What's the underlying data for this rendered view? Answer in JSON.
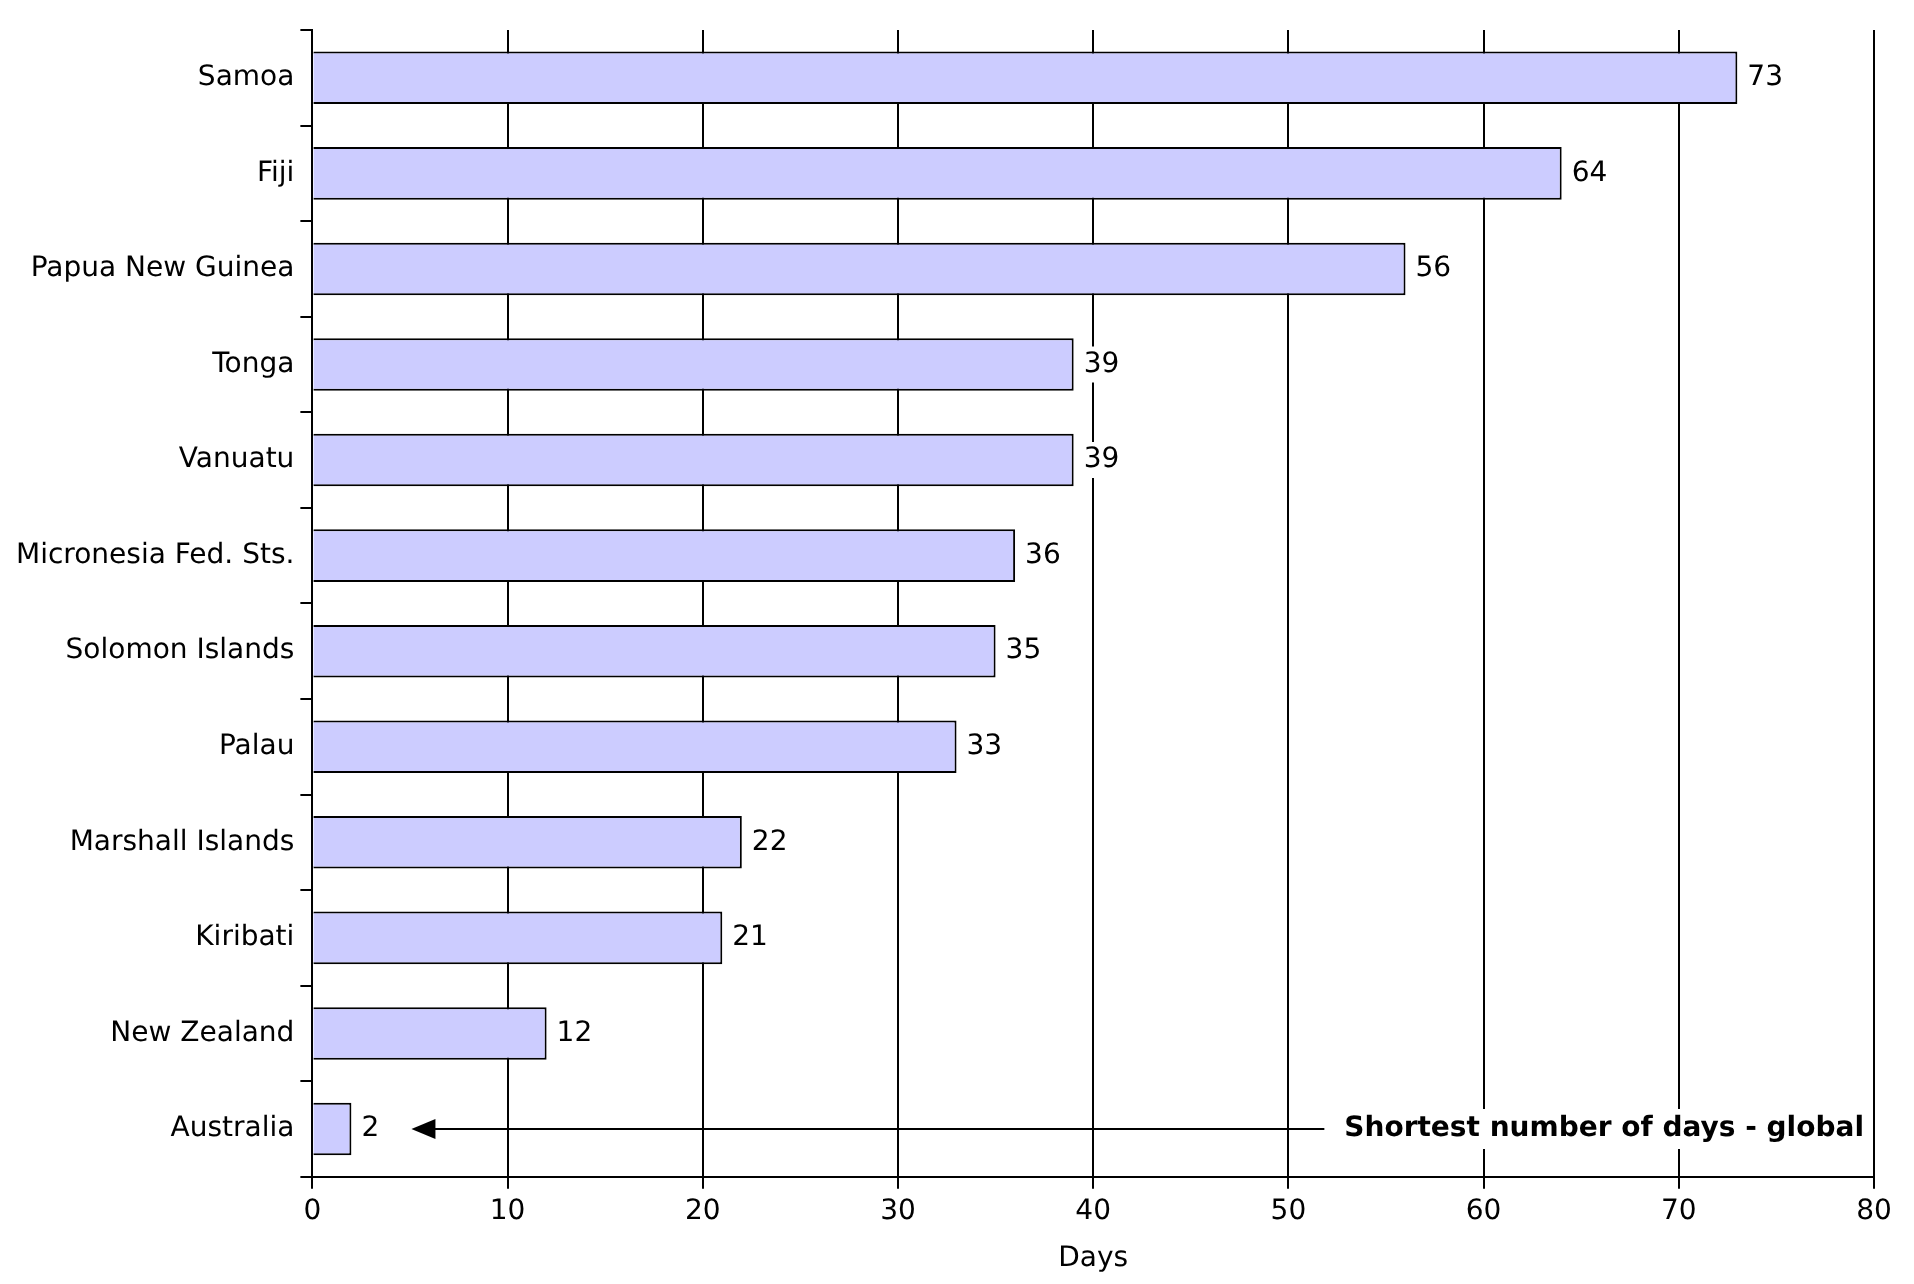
{
  "chart_data": {
    "type": "bar",
    "orientation": "horizontal",
    "xlabel": "Days",
    "categories": [
      "Samoa",
      "Fiji",
      "Papua New Guinea",
      "Tonga",
      "Vanuatu",
      "Micronesia Fed. Sts.",
      "Solomon Islands",
      "Palau",
      "Marshall Islands",
      "Kiribati",
      "New Zealand",
      "Australia"
    ],
    "values": [
      73,
      64,
      56,
      39,
      39,
      36,
      35,
      33,
      22,
      21,
      12,
      2
    ],
    "color": "#ccccff",
    "xlim": [
      0,
      80
    ],
    "xticks": [
      0,
      10,
      20,
      30,
      40,
      50,
      60,
      70,
      80
    ],
    "grid": "x",
    "data_labels": true,
    "legend": false,
    "annotations": [
      "Shortest number of days - global"
    ]
  }
}
